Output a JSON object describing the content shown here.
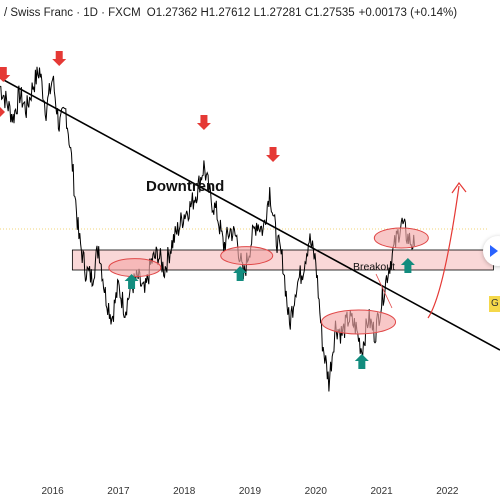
{
  "header": {
    "symbol": "/ Swiss Franc · 1D · FXCM",
    "open_label": "O",
    "open": "1.27362",
    "high_label": "H",
    "high": "1.27612",
    "low_label": "L",
    "low": "1.27281",
    "close_label": "C",
    "close": "1.27535",
    "change": "+0.00173 (+0.14%)"
  },
  "price_tag_label": "G",
  "chart_data": {
    "type": "line",
    "x_tick_labels": [
      "2016",
      "2017",
      "2018",
      "2019",
      "2020",
      "2021",
      "2022"
    ],
    "x_range": [
      2015.2,
      2022.8
    ],
    "y_range": [
      0.85,
      1.4
    ],
    "series": [
      {
        "x": [
          2015.2,
          2015.3,
          2015.4,
          2015.5,
          2015.6,
          2015.7,
          2015.8,
          2015.9,
          2016.0,
          2016.1,
          2016.2,
          2016.3,
          2016.4,
          2016.5,
          2016.6,
          2016.7,
          2016.8,
          2016.9,
          2017.0,
          2017.1,
          2017.2,
          2017.3,
          2017.4,
          2017.5,
          2017.6,
          2017.7,
          2017.8,
          2017.9,
          2018.0,
          2018.1,
          2018.2,
          2018.3,
          2018.4,
          2018.5,
          2018.6,
          2018.7,
          2018.8,
          2018.9,
          2019.0,
          2019.1,
          2019.2,
          2019.3,
          2019.4,
          2019.5,
          2019.6,
          2019.7,
          2019.8,
          2019.9,
          2020.0,
          2020.1,
          2020.2,
          2020.3,
          2020.4,
          2020.5,
          2020.6,
          2020.7,
          2020.8,
          2020.9,
          2021.0,
          2021.1,
          2021.2,
          2021.3,
          2021.4,
          2021.5
        ],
        "y": [
          1.33,
          1.31,
          1.29,
          1.32,
          1.3,
          1.33,
          1.35,
          1.3,
          1.34,
          1.28,
          1.3,
          1.23,
          1.14,
          1.1,
          1.09,
          1.13,
          1.07,
          1.04,
          1.08,
          1.05,
          1.08,
          1.09,
          1.07,
          1.11,
          1.12,
          1.1,
          1.13,
          1.15,
          1.17,
          1.18,
          1.2,
          1.23,
          1.19,
          1.17,
          1.13,
          1.15,
          1.14,
          1.09,
          1.13,
          1.16,
          1.15,
          1.2,
          1.14,
          1.11,
          1.03,
          1.08,
          1.1,
          1.14,
          1.11,
          1.01,
          0.96,
          1.03,
          1.02,
          1.04,
          1.03,
          1.0,
          1.04,
          1.02,
          1.06,
          1.1,
          1.13,
          1.16,
          1.14,
          1.13
        ]
      }
    ],
    "support_zone": [
      1.1,
      1.125
    ],
    "trendline": {
      "x": [
        2015.2,
        2022.8
      ],
      "y": [
        1.34,
        1.0
      ]
    },
    "annotations": {
      "title": "Downtrend",
      "breakout": "Breakout"
    },
    "down_arrows": [
      {
        "x": 2015.25,
        "y": 1.335
      },
      {
        "x": 2016.1,
        "y": 1.355
      },
      {
        "x": 2018.3,
        "y": 1.275
      },
      {
        "x": 2019.35,
        "y": 1.235
      }
    ],
    "up_arrows": [
      {
        "x": 2017.2,
        "y": 1.095
      },
      {
        "x": 2018.85,
        "y": 1.105
      },
      {
        "x": 2020.7,
        "y": 0.995
      },
      {
        "x": 2021.4,
        "y": 1.115
      }
    ],
    "highlight_ellipses": [
      {
        "x": 2017.25,
        "y": 1.103
      },
      {
        "x": 2018.95,
        "y": 1.118
      },
      {
        "x": 2020.65,
        "y": 1.035
      },
      {
        "x": 2021.3,
        "y": 1.14
      }
    ],
    "colors": {
      "price": "#000000",
      "trendline": "#000000",
      "zone_fill": "#f9d7d7",
      "zone_stroke": "#000000",
      "ellipse_fill": "#f4a9a9",
      "ellipse_stroke": "#e04848",
      "down_arrow": "#e53935",
      "up_arrow": "#128c7e",
      "projection": "#e53935",
      "dotted_level": "#f2d57a"
    }
  }
}
